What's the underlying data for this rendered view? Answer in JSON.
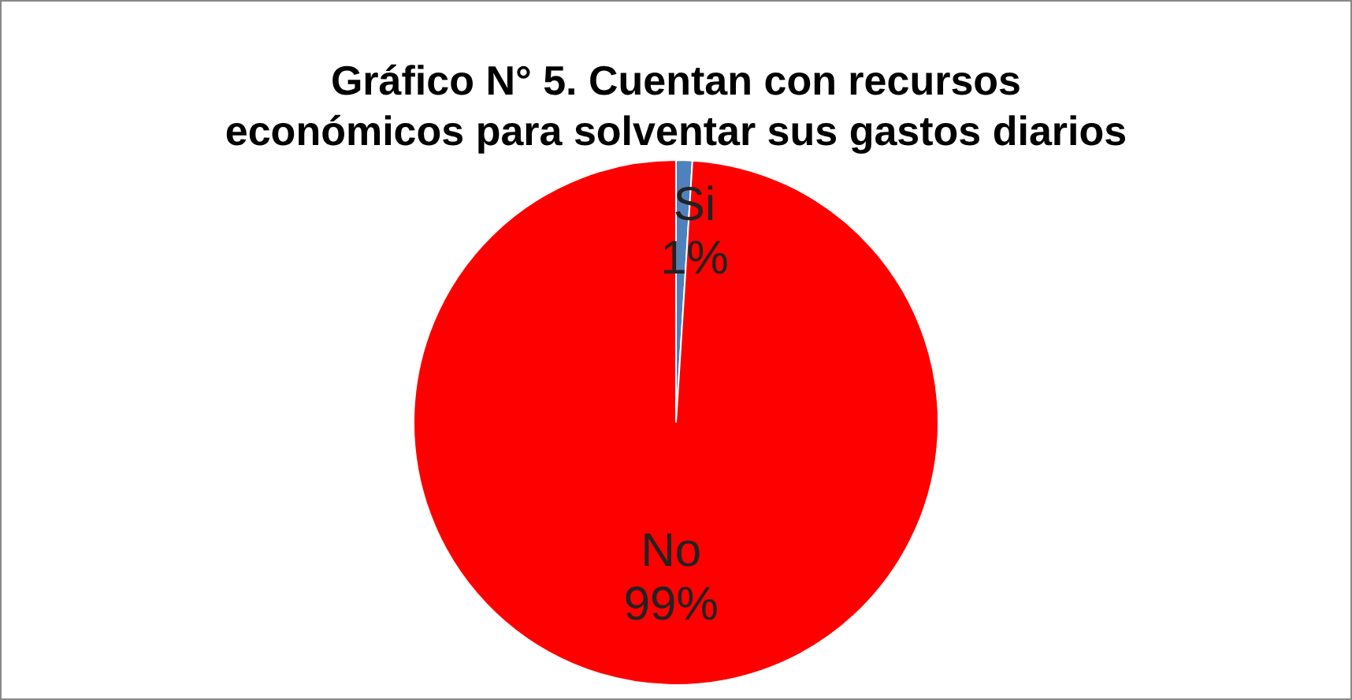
{
  "chart_data": {
    "type": "pie",
    "title": "Gráfico N° 5. Cuentan con recursos económicos para solventar sus gastos diarios",
    "categories": [
      "Si",
      "No"
    ],
    "values": [
      1,
      99
    ],
    "colors": [
      "#4f81bd",
      "#ff0000"
    ],
    "value_labels": [
      "1%",
      "99%"
    ],
    "legend": false
  }
}
